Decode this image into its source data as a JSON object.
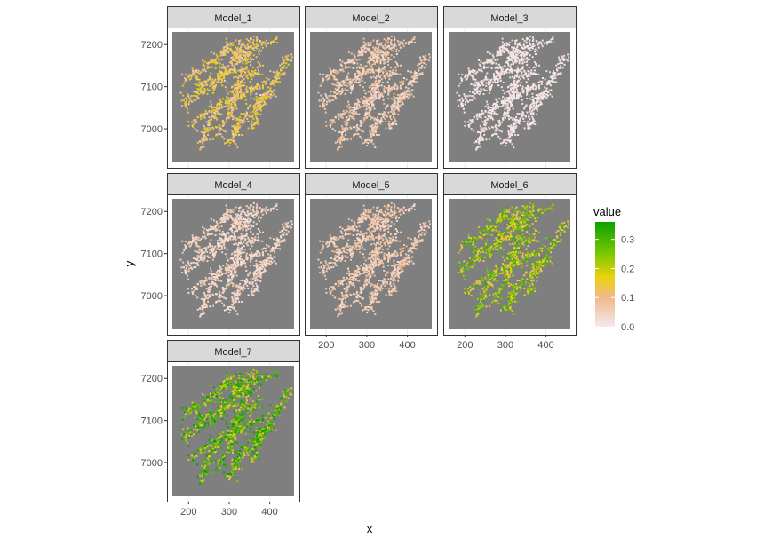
{
  "chart_data": {
    "type": "heatmap",
    "facet_labels": [
      "Model_1",
      "Model_2",
      "Model_3",
      "Model_4",
      "Model_5",
      "Model_6",
      "Model_7"
    ],
    "xlabel": "x",
    "ylabel": "y",
    "x_ticks": [
      200,
      300,
      400
    ],
    "y_ticks": [
      7000,
      7100,
      7200
    ],
    "xlim": [
      160,
      460
    ],
    "ylim": [
      6920,
      7230
    ],
    "legend": {
      "title": "value",
      "ticks": [
        "0.0",
        "0.1",
        "0.2",
        "0.3"
      ],
      "tick_values": [
        0.0,
        0.1,
        0.2,
        0.3
      ],
      "range": [
        0.0,
        0.36
      ],
      "placement": "right",
      "colors": [
        "#f5e8ee",
        "#f0b98a",
        "#ecd20e",
        "#7cc800",
        "#0aa100"
      ]
    },
    "panel_background": "#7f7f7f",
    "approx_value_level_per_model": {
      "Model_1": 0.12,
      "Model_2": 0.06,
      "Model_3": 0.01,
      "Model_4": 0.04,
      "Model_5": 0.06,
      "Model_6": 0.22,
      "Model_7": 0.28
    }
  }
}
